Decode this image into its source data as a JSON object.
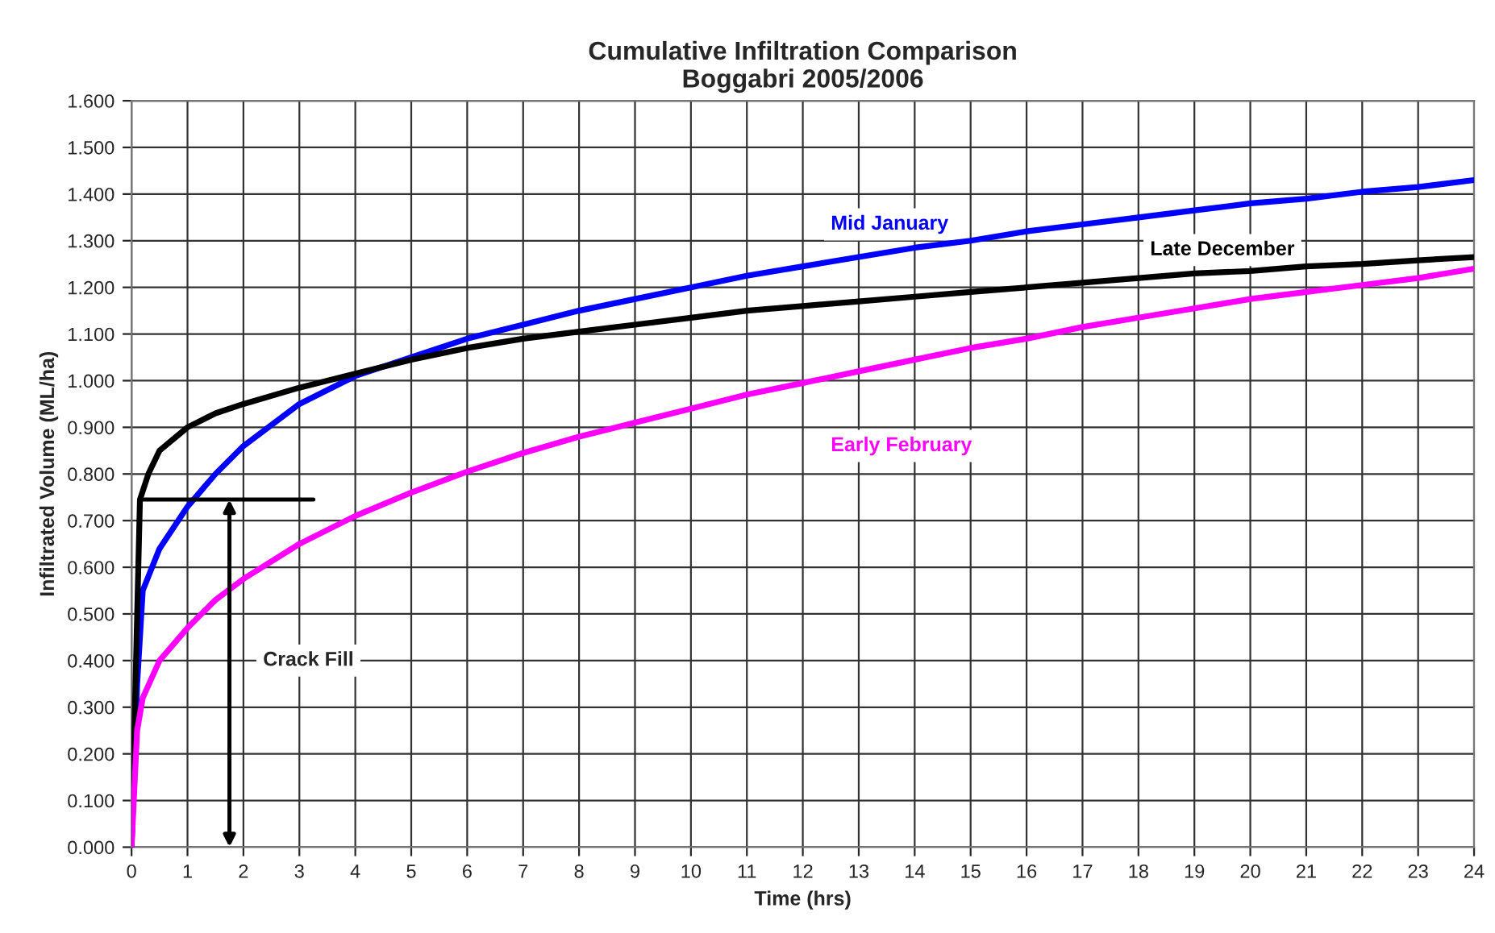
{
  "chart_data": {
    "type": "line",
    "title": "Cumulative Infiltration Comparison\nBoggabri 2005/2006",
    "xlabel": "Time (hrs)",
    "ylabel": "Infiltrated Volume (ML/ha)",
    "x": [
      0,
      0.1,
      0.2,
      0.5,
      1,
      1.5,
      2,
      3,
      4,
      5,
      6,
      7,
      8,
      9,
      10,
      11,
      12,
      13,
      14,
      15,
      16,
      17,
      18,
      19,
      20,
      21,
      22,
      23,
      24
    ],
    "series": [
      {
        "name": "Mid January",
        "color": "#0000ff",
        "values": [
          0,
          0.35,
          0.55,
          0.64,
          0.73,
          0.8,
          0.86,
          0.95,
          1.01,
          1.05,
          1.09,
          1.12,
          1.15,
          1.175,
          1.2,
          1.225,
          1.245,
          1.265,
          1.285,
          1.3,
          1.32,
          1.335,
          1.35,
          1.365,
          1.38,
          1.39,
          1.405,
          1.415,
          1.43
        ]
      },
      {
        "name": "Late December",
        "color": "#000000",
        "x": [
          0,
          0.15,
          0.3,
          0.5,
          1,
          1.5,
          2,
          3,
          4,
          5,
          6,
          7,
          8,
          9,
          10,
          11,
          12,
          13,
          14,
          15,
          16,
          17,
          18,
          19,
          20,
          21,
          22,
          23,
          24
        ],
        "values": [
          0,
          0.745,
          0.8,
          0.85,
          0.9,
          0.93,
          0.95,
          0.985,
          1.015,
          1.045,
          1.07,
          1.09,
          1.105,
          1.12,
          1.135,
          1.15,
          1.16,
          1.17,
          1.18,
          1.19,
          1.2,
          1.21,
          1.22,
          1.23,
          1.235,
          1.245,
          1.25,
          1.258,
          1.265
        ]
      },
      {
        "name": "Early February",
        "color": "#ff00ff",
        "values": [
          0,
          0.25,
          0.32,
          0.4,
          0.47,
          0.53,
          0.575,
          0.65,
          0.71,
          0.76,
          0.805,
          0.845,
          0.88,
          0.91,
          0.94,
          0.97,
          0.995,
          1.02,
          1.045,
          1.07,
          1.09,
          1.115,
          1.135,
          1.155,
          1.175,
          1.19,
          1.205,
          1.22,
          1.24
        ]
      },
      {
        "color": "#000000",
        "x": [
          0.15,
          3.25
        ],
        "values": [
          0.745,
          0.745
        ]
      }
    ],
    "annotations": [
      "Crack Fill"
    ],
    "xlim": [
      0,
      24
    ],
    "xticks": [
      0,
      1,
      2,
      3,
      4,
      5,
      6,
      7,
      8,
      9,
      10,
      11,
      12,
      13,
      14,
      15,
      16,
      17,
      18,
      19,
      20,
      21,
      22,
      23,
      24
    ],
    "ylim": [
      0,
      1.6
    ],
    "yticks": [
      {
        "value": 0,
        "label": "0.000"
      },
      {
        "value": 0.1,
        "label": "0.100"
      },
      {
        "value": 0.2,
        "label": "0.200"
      },
      {
        "value": 0.3,
        "label": "0.300"
      },
      {
        "value": 0.4,
        "label": "0.400"
      },
      {
        "value": 0.5,
        "label": "0.500"
      },
      {
        "value": 0.6,
        "label": "0.600"
      },
      {
        "value": 0.7,
        "label": "0.700"
      },
      {
        "value": 0.8,
        "label": "0.800"
      },
      {
        "value": 0.9,
        "label": "0.900"
      },
      {
        "value": 1.0,
        "label": "1.000"
      },
      {
        "value": 1.1,
        "label": "1.100"
      },
      {
        "value": 1.2,
        "label": "1.200"
      },
      {
        "value": 1.3,
        "label": "1.300"
      },
      {
        "value": 1.4,
        "label": "1.400"
      },
      {
        "value": 1.5,
        "label": "1.500"
      },
      {
        "value": 1.6,
        "label": "1.600"
      }
    ],
    "grid": true,
    "legend": false,
    "marker": "none",
    "line_style": "solid"
  }
}
